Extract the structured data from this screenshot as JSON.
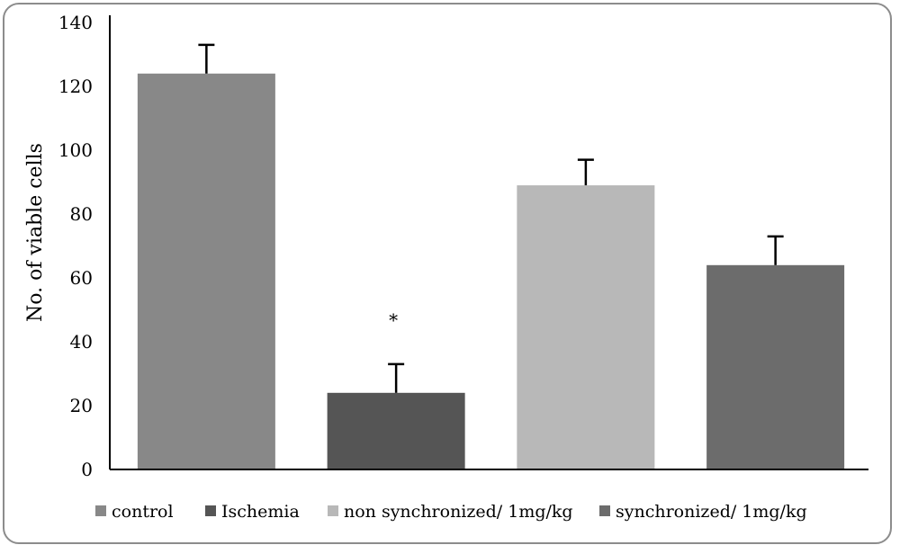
{
  "chart_data": {
    "type": "bar",
    "title": "",
    "xlabel": "",
    "ylabel": "No. of viable cells",
    "ylim": [
      0,
      140
    ],
    "yticks": [
      0,
      20,
      40,
      60,
      80,
      100,
      120,
      140
    ],
    "categories": [
      "control",
      "Ischemia",
      "non synchronized/ 1mg/kg",
      "synchronized/ 1mg/kg"
    ],
    "values": [
      124,
      24,
      89,
      64
    ],
    "errors": [
      9,
      9,
      8,
      9
    ],
    "colors": [
      "#888888",
      "#555555",
      "#b8b8b8",
      "#6c6c6c"
    ],
    "annotations": [
      {
        "category": "Ischemia",
        "text": "*"
      }
    ],
    "legend": {
      "position": "bottom",
      "entries": [
        "control",
        "Ischemia",
        "non synchronized/ 1mg/kg",
        "synchronized/ 1mg/kg"
      ]
    },
    "grid": false
  }
}
